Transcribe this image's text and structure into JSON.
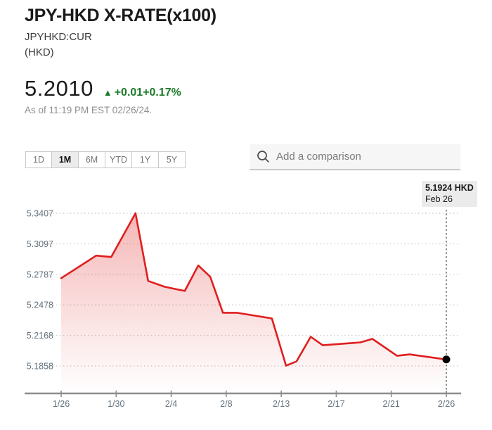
{
  "header": {
    "title": "JPY-HKD X-RATE(x100)",
    "ticker": "JPYHKD:CUR",
    "unit": "(HKD)",
    "price": "5.2010",
    "change_arrow": "▲",
    "change": "+0.01",
    "change_pct": "+0.17%",
    "as_of": "As of 11:19 PM EST 02/26/24."
  },
  "controls": {
    "ranges": [
      "1D",
      "1M",
      "6M",
      "YTD",
      "1Y",
      "5Y"
    ],
    "active_range": "1M",
    "search_placeholder": "Add a comparison"
  },
  "tooltip": {
    "price": "5.1924 HKD",
    "date": "Feb 26"
  },
  "colors": {
    "line_red": "#e01e1e",
    "up_green": "#1e7b2a",
    "grid": "#d2d2d2",
    "axis": "#8c8c8c",
    "axis_label": "#64727c",
    "crosshair": "#8f8f8f",
    "dot": "#000000"
  },
  "chart_data": {
    "type": "line",
    "title": "JPY-HKD X-RATE(x100) — 1M",
    "ylabel": "HKD",
    "xlabel": "",
    "grid": "horizontal-dotted",
    "legend_position": "none",
    "ylim": [
      5.1858,
      5.3407
    ],
    "y_ticks": [
      "5.3407",
      "5.3097",
      "5.2787",
      "5.2478",
      "5.2168",
      "5.1858"
    ],
    "x_ticks": [
      "1/26",
      "1/30",
      "2/4",
      "2/8",
      "2/13",
      "2/17",
      "2/21",
      "2/26"
    ],
    "series": [
      {
        "name": "JPYHKD:CUR",
        "points": [
          {
            "date": "1/26",
            "x": 0.0,
            "value": 5.2748
          },
          {
            "date": "1/29",
            "x": 0.091,
            "value": 5.2977
          },
          {
            "date": "1/30",
            "x": 0.13,
            "value": 5.2963
          },
          {
            "date": "2/1",
            "x": 0.193,
            "value": 5.3407
          },
          {
            "date": "2/2",
            "x": 0.226,
            "value": 5.272
          },
          {
            "date": "2/4",
            "x": 0.268,
            "value": 5.2662
          },
          {
            "date": "2/5",
            "x": 0.321,
            "value": 5.2619
          },
          {
            "date": "2/6",
            "x": 0.356,
            "value": 5.2877
          },
          {
            "date": "2/7",
            "x": 0.387,
            "value": 5.2763
          },
          {
            "date": "2/8",
            "x": 0.42,
            "value": 5.2398
          },
          {
            "date": "2/9",
            "x": 0.456,
            "value": 5.2398
          },
          {
            "date": "2/12",
            "x": 0.547,
            "value": 5.234
          },
          {
            "date": "2/13",
            "x": 0.584,
            "value": 5.1861
          },
          {
            "date": "2/14",
            "x": 0.611,
            "value": 5.1904
          },
          {
            "date": "2/15",
            "x": 0.648,
            "value": 5.2154
          },
          {
            "date": "2/16",
            "x": 0.679,
            "value": 5.2068
          },
          {
            "date": "2/19",
            "x": 0.777,
            "value": 5.2097
          },
          {
            "date": "2/20",
            "x": 0.808,
            "value": 5.2133
          },
          {
            "date": "2/21",
            "x": 0.872,
            "value": 5.1961
          },
          {
            "date": "2/22",
            "x": 0.905,
            "value": 5.1975
          },
          {
            "date": "2/26",
            "x": 1.0,
            "value": 5.1924
          }
        ]
      }
    ],
    "last_point": {
      "date": "Feb 26",
      "value": 5.1924,
      "label": "5.1924 HKD"
    }
  }
}
